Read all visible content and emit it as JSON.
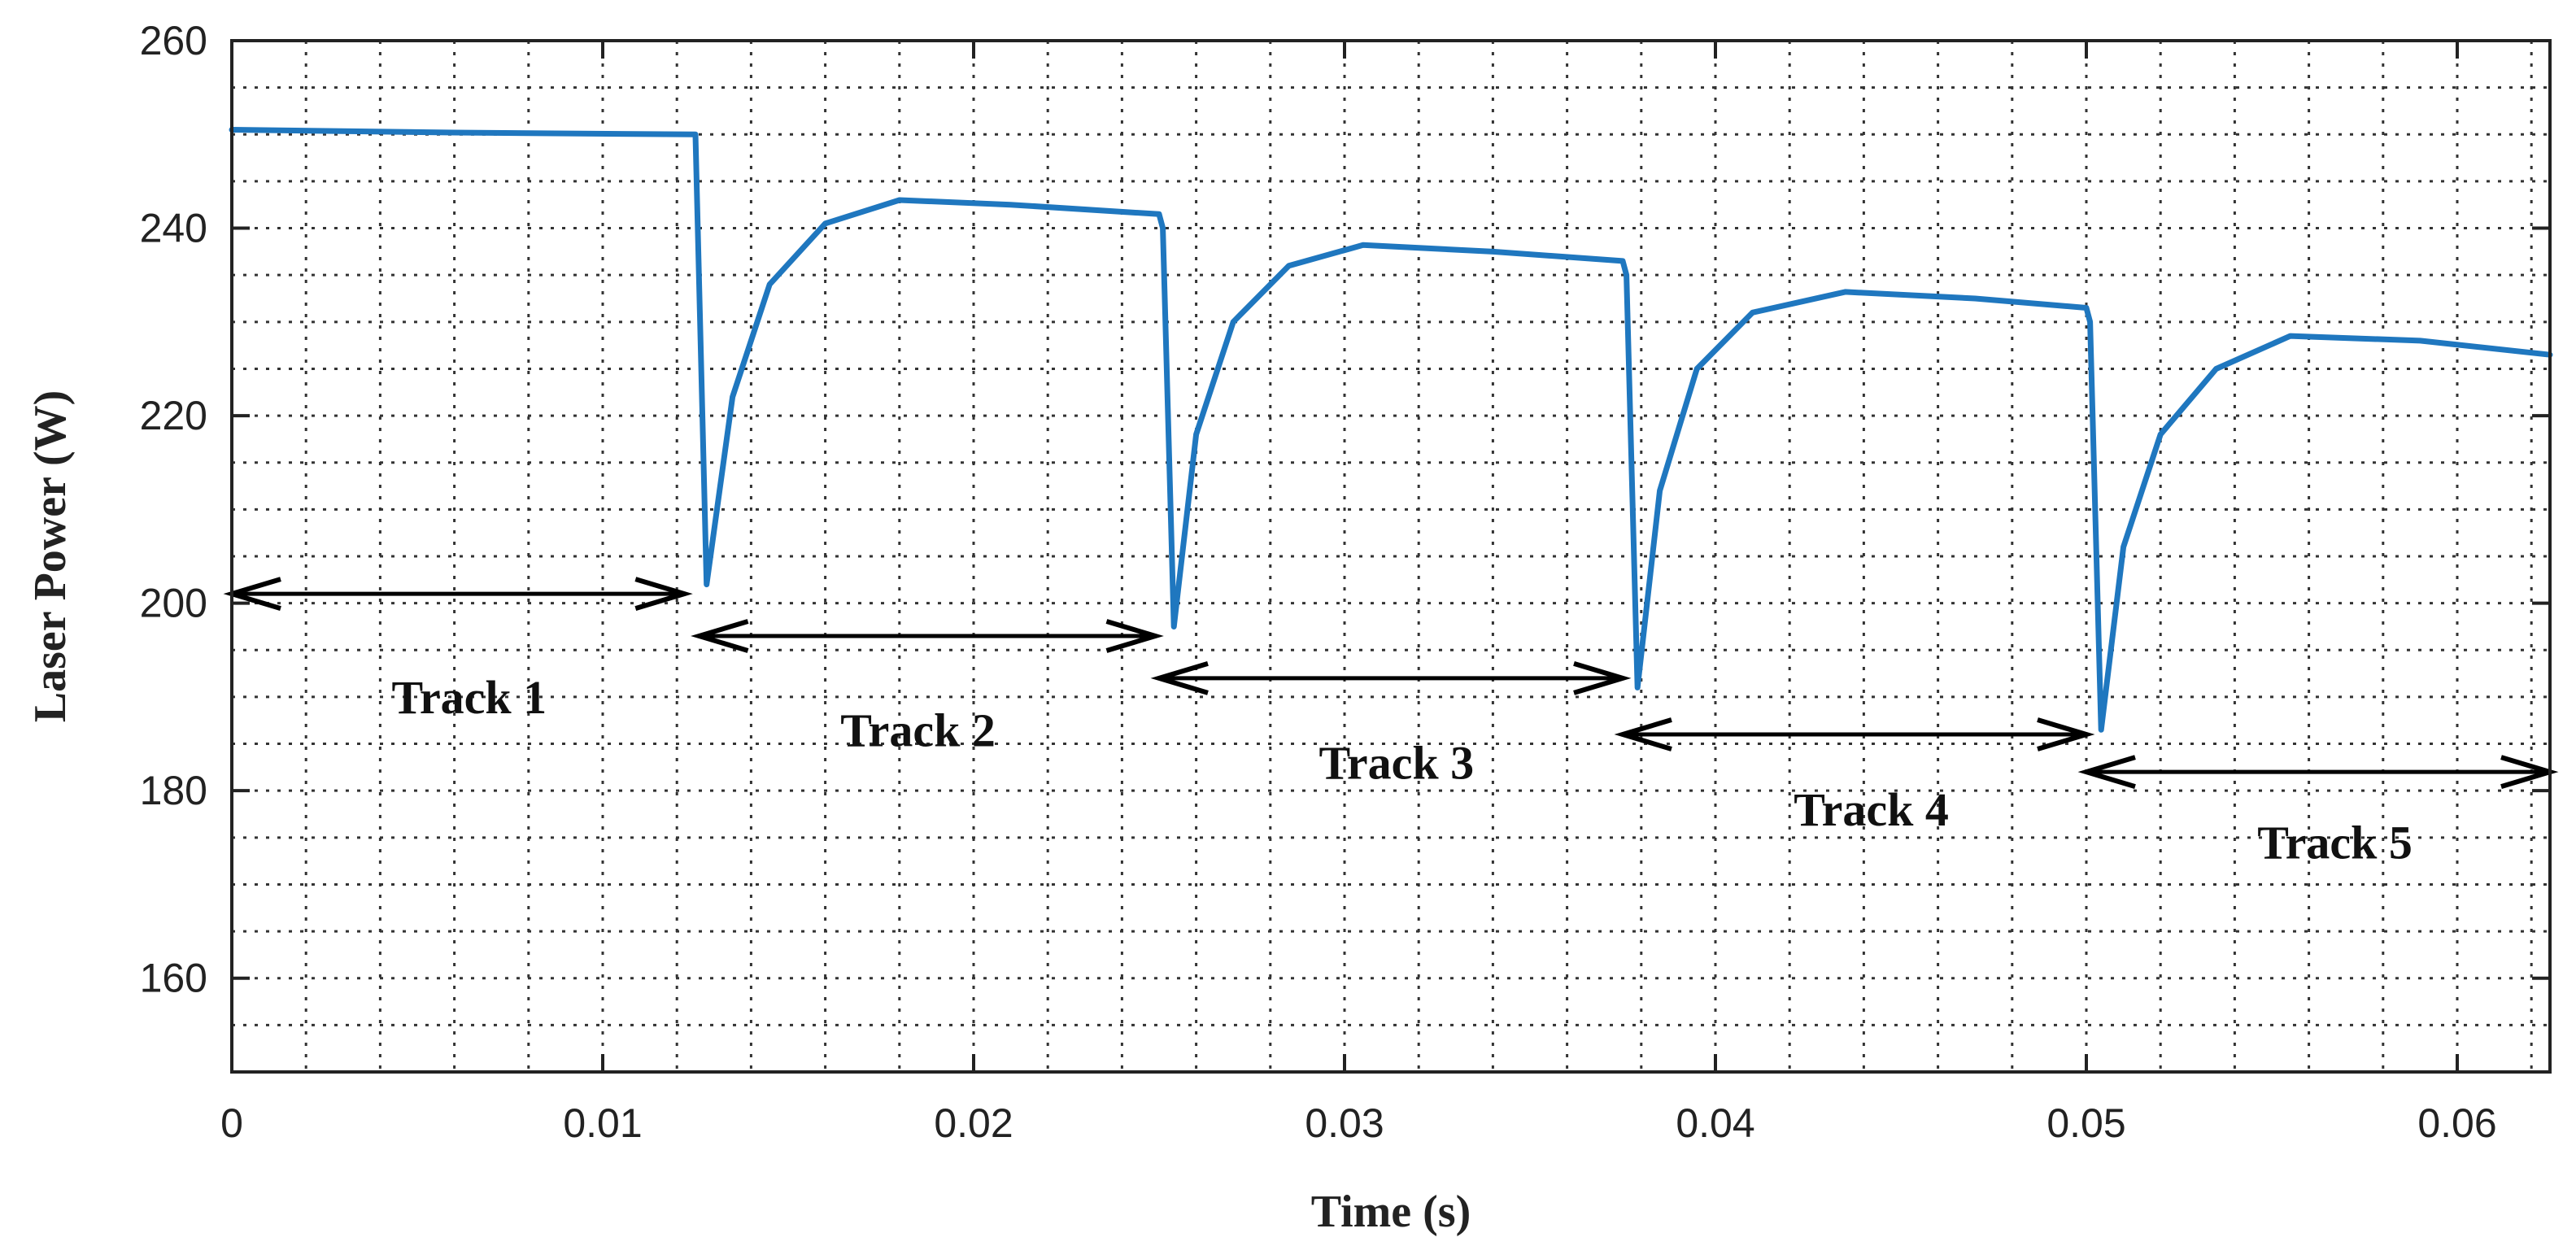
{
  "chart_data": {
    "type": "line",
    "xlabel": "Time (s)",
    "ylabel": "Laser Power (W)",
    "xlim": [
      0,
      0.0625
    ],
    "ylim": [
      150,
      260
    ],
    "xticks": [
      0,
      0.01,
      0.02,
      0.03,
      0.04,
      0.05,
      0.06
    ],
    "xtick_labels": [
      "0",
      "0.01",
      "0.02",
      "0.03",
      "0.04",
      "0.05",
      "0.06"
    ],
    "yticks": [
      160,
      180,
      200,
      220,
      240,
      260
    ],
    "ytick_labels": [
      "160",
      "180",
      "200",
      "220",
      "240",
      "260"
    ],
    "grid": true,
    "line_color": "#1f77bf",
    "series": [
      {
        "x": [
          0,
          0.006,
          0.0125,
          0.0128,
          0.0135,
          0.0145,
          0.016,
          0.018,
          0.021,
          0.025,
          0.0251,
          0.0254,
          0.026,
          0.027,
          0.0285,
          0.0305,
          0.034,
          0.0375,
          0.0376,
          0.0379,
          0.0385,
          0.0395,
          0.041,
          0.0435,
          0.047,
          0.05,
          0.0501,
          0.0504,
          0.051,
          0.052,
          0.0535,
          0.0555,
          0.059,
          0.0625
        ],
        "y": [
          250.5,
          250.2,
          250,
          202,
          222,
          234,
          240.5,
          243,
          242.5,
          241.5,
          240,
          197.5,
          218,
          230,
          236,
          238.2,
          237.5,
          236.5,
          235,
          191,
          212,
          225,
          231,
          233.2,
          232.5,
          231.5,
          230,
          186.5,
          206,
          218,
          225,
          228.5,
          228,
          226.5
        ]
      }
    ],
    "annotations": [
      {
        "label": "Track 1",
        "x_start": 0,
        "x_end": 0.0122,
        "y": 201,
        "label_x": 0.0064,
        "label_y": 190
      },
      {
        "label": "Track 2",
        "x_start": 0.0126,
        "x_end": 0.0249,
        "y": 196.5,
        "label_x": 0.0185,
        "label_y": 186.5
      },
      {
        "label": "Track 3",
        "x_start": 0.025,
        "x_end": 0.0375,
        "y": 192,
        "label_x": 0.0314,
        "label_y": 183
      },
      {
        "label": "Track 4",
        "x_start": 0.0375,
        "x_end": 0.05,
        "y": 186,
        "label_x": 0.0442,
        "label_y": 178
      },
      {
        "label": "Track 5",
        "x_start": 0.05,
        "x_end": 0.0625,
        "y": 182,
        "label_x": 0.0567,
        "label_y": 174.5
      }
    ]
  }
}
